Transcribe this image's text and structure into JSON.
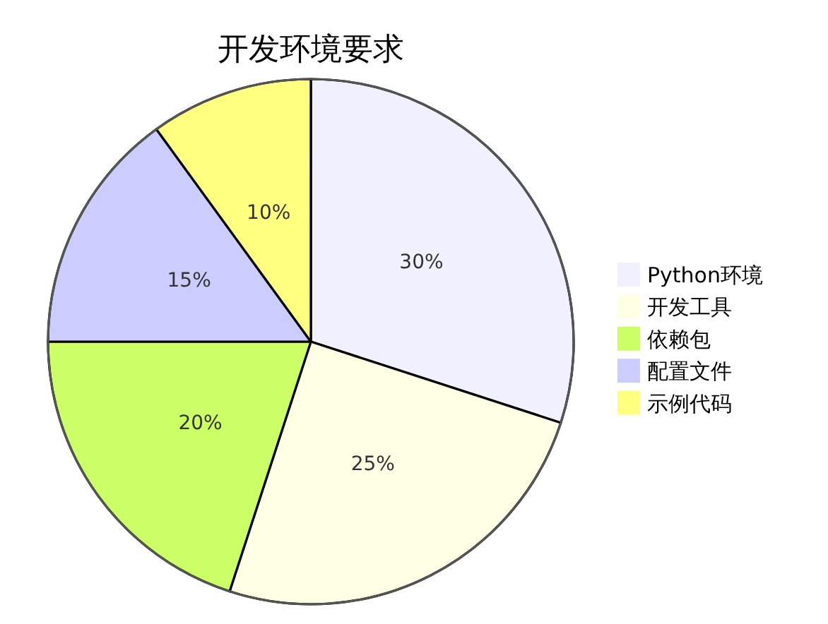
{
  "chart_data": {
    "type": "pie",
    "title": "开发环境要求",
    "categories": [
      "Python环境",
      "开发工具",
      "依赖包",
      "配置文件",
      "示例代码"
    ],
    "values": [
      30,
      25,
      20,
      15,
      10
    ],
    "value_labels": [
      "30%",
      "25%",
      "20%",
      "15%",
      "10%"
    ],
    "colors": [
      "#f0f0ff",
      "#ffffe6",
      "#ccff66",
      "#ccccff",
      "#ffff80"
    ],
    "legend": "right"
  }
}
